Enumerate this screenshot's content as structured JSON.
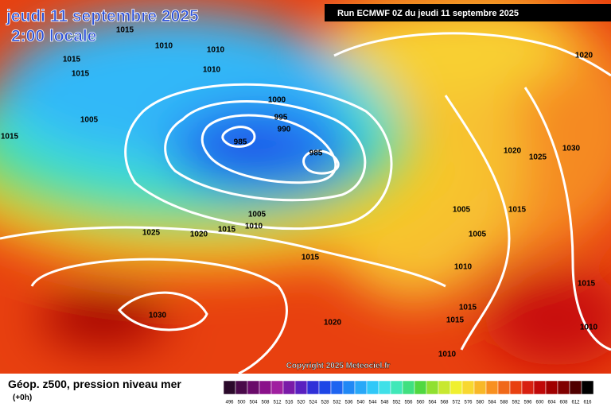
{
  "header": {
    "date": "jeudi 11 septembre 2025",
    "time": "2:00 locale",
    "run": "Run ECMWF 0Z du jeudi 11 septembre 2025"
  },
  "isobar_labels": [
    "1015",
    "1010",
    "1015",
    "1015",
    "1010",
    "1010",
    "1005",
    "1015",
    "1000",
    "995",
    "990",
    "985",
    "985",
    "1020",
    "1020",
    "1030",
    "1025",
    "1005",
    "1015",
    "1005",
    "1005",
    "1010",
    "1015",
    "1020",
    "1025",
    "1015",
    "1010",
    "1015",
    "1015",
    "1015",
    "1030",
    "1020",
    "1010",
    "1010"
  ],
  "copyright": "Copyright 2025 Meteociel.fr",
  "legend": {
    "title": "Géop. z500, pression niveau mer",
    "lead": "(+0h)",
    "scale": [
      {
        "value": 496,
        "color": "#2b0a2b"
      },
      {
        "value": 500,
        "color": "#4a0a4a"
      },
      {
        "value": 504,
        "color": "#6a0a6a"
      },
      {
        "value": 508,
        "color": "#8a108a"
      },
      {
        "value": 512,
        "color": "#a020a0"
      },
      {
        "value": 516,
        "color": "#7a1aa8"
      },
      {
        "value": 520,
        "color": "#5a20c0"
      },
      {
        "value": 524,
        "color": "#3030d8"
      },
      {
        "value": 528,
        "color": "#1e46e6"
      },
      {
        "value": 532,
        "color": "#1e64f0"
      },
      {
        "value": 536,
        "color": "#2088f5"
      },
      {
        "value": 540,
        "color": "#28a8f8"
      },
      {
        "value": 544,
        "color": "#30c8f8"
      },
      {
        "value": 548,
        "color": "#40e0e8"
      },
      {
        "value": 552,
        "color": "#40e8b8"
      },
      {
        "value": 556,
        "color": "#40e080"
      },
      {
        "value": 560,
        "color": "#50d840"
      },
      {
        "value": 564,
        "color": "#90e030"
      },
      {
        "value": 568,
        "color": "#c8e830"
      },
      {
        "value": 572,
        "color": "#f0f030"
      },
      {
        "value": 576,
        "color": "#f8d830"
      },
      {
        "value": 580,
        "color": "#f8b828"
      },
      {
        "value": 584,
        "color": "#f89020"
      },
      {
        "value": 588,
        "color": "#f06818"
      },
      {
        "value": 592,
        "color": "#e84010"
      },
      {
        "value": 596,
        "color": "#d82010"
      },
      {
        "value": 600,
        "color": "#c00808"
      },
      {
        "value": 604,
        "color": "#a00000"
      },
      {
        "value": 608,
        "color": "#800000"
      },
      {
        "value": 612,
        "color": "#500000"
      },
      {
        "value": 616,
        "color": "#000000"
      }
    ]
  }
}
